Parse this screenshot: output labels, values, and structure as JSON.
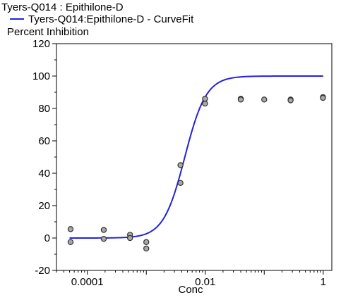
{
  "chart_data": {
    "type": "scatter",
    "title": "Tyers-Q014  : Epithilone-D",
    "legend": {
      "entries": [
        {
          "label": "Tyers-Q014:Epithilone-D - CurveFit",
          "color": "#2222dd",
          "style": "line"
        }
      ],
      "placement": "top-left"
    },
    "xlabel": "Conc",
    "ylabel": "Percent Inhibition",
    "xscale": "log",
    "xlim": [
      3e-05,
      1.4
    ],
    "ylim": [
      -20,
      120
    ],
    "xticks": [
      {
        "value": 0.0001,
        "label": "0.0001"
      },
      {
        "value": 0.01,
        "label": "0.01"
      },
      {
        "value": 1,
        "label": "1"
      }
    ],
    "yticks": [
      {
        "value": -20,
        "label": "-20"
      },
      {
        "value": 0,
        "label": "0"
      },
      {
        "value": 20,
        "label": "20"
      },
      {
        "value": 40,
        "label": "40"
      },
      {
        "value": 60,
        "label": "60"
      },
      {
        "value": 80,
        "label": "80"
      },
      {
        "value": 100,
        "label": "100"
      },
      {
        "value": 120,
        "label": "120"
      }
    ],
    "grid": false,
    "curve": {
      "model": "sigmoid",
      "bottom": 0,
      "top": 100,
      "ec50": 0.0045,
      "hill": 2.4,
      "x_range": [
        5e-05,
        1
      ],
      "color": "#2222dd"
    },
    "points": [
      {
        "x": 5.2e-05,
        "y": 5.5
      },
      {
        "x": 5.2e-05,
        "y": -2.5
      },
      {
        "x": 0.00019,
        "y": 5
      },
      {
        "x": 0.00019,
        "y": -0.5
      },
      {
        "x": 0.00053,
        "y": 2
      },
      {
        "x": 0.00053,
        "y": 0
      },
      {
        "x": 0.001,
        "y": -2.5
      },
      {
        "x": 0.001,
        "y": -6.5
      },
      {
        "x": 0.0038,
        "y": 45
      },
      {
        "x": 0.0038,
        "y": 34
      },
      {
        "x": 0.0099,
        "y": 86
      },
      {
        "x": 0.0099,
        "y": 83
      },
      {
        "x": 0.04,
        "y": 86
      },
      {
        "x": 0.04,
        "y": 85.5
      },
      {
        "x": 0.1,
        "y": 85.5
      },
      {
        "x": 0.28,
        "y": 85.5
      },
      {
        "x": 0.28,
        "y": 85
      },
      {
        "x": 0.99,
        "y": 87
      },
      {
        "x": 0.99,
        "y": 86.5
      }
    ],
    "point_color": "#a8a8a8",
    "point_edge": "#333333"
  }
}
